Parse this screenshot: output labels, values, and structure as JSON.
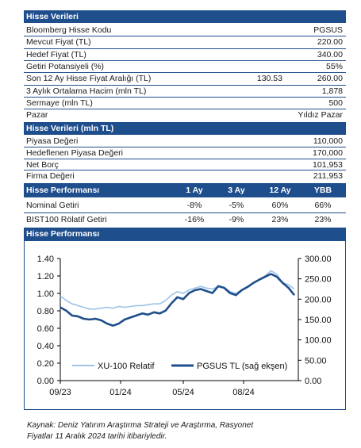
{
  "stock": {
    "title": "Hisse Verileri",
    "rows": [
      {
        "label": "Bloomberg Hisse Kodu",
        "value": "PGSUS"
      },
      {
        "label": "Mevcut Fiyat (TL)",
        "value": "220.00"
      },
      {
        "label": "Hedef Fiyat (TL)",
        "value": "340.00"
      },
      {
        "label": "Getiri Potansiyeli (%)",
        "value": "55%"
      },
      {
        "label": "Son 12 Ay Hisse Fiyat Aralığı (TL)",
        "mid": "130.53",
        "value": "260.00"
      },
      {
        "label": "3 Aylık Ortalama Hacim (mln TL)",
        "value": "1,878"
      },
      {
        "label": "Sermaye (mln TL)",
        "value": "500"
      },
      {
        "label": "Pazar",
        "value": "Yıldız Pazar"
      }
    ]
  },
  "valuation": {
    "title": "Hisse Verileri (mln TL)",
    "rows": [
      {
        "label": "Piyasa Değeri",
        "value": "110,000"
      },
      {
        "label": "Hedeflenen Piyasa Değeri",
        "value": "170,000"
      },
      {
        "label": "Net Borç",
        "value": "101,953"
      },
      {
        "label": "Firma Değeri",
        "value": "211,953"
      }
    ]
  },
  "performance": {
    "title": "Hisse Performansı",
    "headers": [
      "1 Ay",
      "3 Ay",
      "12 Ay",
      "YBB"
    ],
    "rows": [
      {
        "label": "Nominal Getiri",
        "vals": [
          "-8%",
          "-5%",
          "60%",
          "66%"
        ]
      },
      {
        "label": "BIST100 Rölatif Getiri",
        "vals": [
          "-16%",
          "-9%",
          "23%",
          "23%"
        ]
      }
    ]
  },
  "chart_section": {
    "title": "Hisse Performansı"
  },
  "chart_data": {
    "type": "line",
    "x_ticks": [
      "09/23",
      "01/24",
      "05/24",
      "08/24"
    ],
    "y_left": {
      "ticks": [
        "0.00",
        "0.20",
        "0.40",
        "0.60",
        "0.80",
        "1.00",
        "1.20",
        "1.40"
      ],
      "min": 0,
      "max": 1.4
    },
    "y_right": {
      "ticks": [
        "0.00",
        "50.00",
        "100.00",
        "150.00",
        "200.00",
        "250.00",
        "300.00"
      ],
      "min": 0,
      "max": 300
    },
    "series": [
      {
        "name": "XU-100 Relatif",
        "axis": "left",
        "color": "#9dc3e6",
        "values": [
          0.97,
          0.92,
          0.88,
          0.86,
          0.84,
          0.82,
          0.82,
          0.83,
          0.84,
          0.83,
          0.85,
          0.84,
          0.85,
          0.86,
          0.86,
          0.87,
          0.88,
          0.88,
          0.92,
          0.98,
          1.02,
          1.0,
          1.04,
          1.06,
          1.08,
          1.06,
          1.05,
          1.08,
          1.07,
          1.02,
          1.0,
          1.04,
          1.08,
          1.12,
          1.16,
          1.2,
          1.26,
          1.22,
          1.12,
          1.1,
          1.05
        ]
      },
      {
        "name": "PGSUS TL (sağ ekşen)",
        "axis": "right",
        "color": "#1f4e8c",
        "values": [
          180,
          172,
          160,
          158,
          152,
          150,
          152,
          148,
          140,
          135,
          140,
          150,
          155,
          160,
          165,
          162,
          168,
          165,
          172,
          190,
          205,
          200,
          215,
          222,
          225,
          220,
          215,
          232,
          228,
          215,
          210,
          222,
          230,
          240,
          248,
          255,
          262,
          255,
          240,
          228,
          210
        ]
      }
    ]
  },
  "source": {
    "line1": "Kaynak: Deniz Yatırım Araştırma Strateji ve Araştırma, Rasyonet",
    "line2": "Fiyatlar 11 Aralık 2024 tarihi itibariyledir."
  }
}
